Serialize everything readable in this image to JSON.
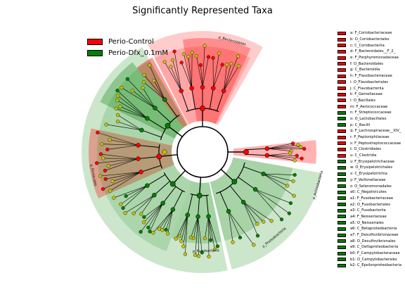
{
  "chart_data": {
    "type": "cladogram",
    "title": "Significantly Represented Taxa",
    "groups": [
      {
        "name": "Perio-Control",
        "color": "#ff0000"
      },
      {
        "name": "Perio-Dfx_0.1mM",
        "color": "#008000"
      }
    ],
    "clade_labels": [
      {
        "text": "p_Bacteroidetes",
        "group": "Perio-Control"
      },
      {
        "text": "p_Actinobacteria",
        "group": "Perio-Control"
      },
      {
        "text": "p_Firmicutes",
        "group": "Perio-Control"
      },
      {
        "text": "p_Proteobacteria",
        "group": "Perio-Dfx_0.1mM"
      },
      {
        "text": "p_Fusobacteria",
        "group": "Perio-Dfx_0.1mM"
      }
    ],
    "taxa": [
      {
        "key": "a",
        "label": "a: F_Coriobacteriaceae",
        "group": "Perio-Control"
      },
      {
        "key": "b",
        "label": "b: O_Coriobacteriales",
        "group": "Perio-Control"
      },
      {
        "key": "c",
        "label": "c: C_Coriobacteriia",
        "group": "Perio-Control"
      },
      {
        "key": "d",
        "label": "d: F_Bacteroidales__F_2_",
        "group": "Perio-Control"
      },
      {
        "key": "e",
        "label": "e: F_Porphyromonadaceae",
        "group": "Perio-Control"
      },
      {
        "key": "f",
        "label": "f: O_Bacteroidales",
        "group": "Perio-Control"
      },
      {
        "key": "g",
        "label": "g: C_Bacteroidia",
        "group": "Perio-Control"
      },
      {
        "key": "h",
        "label": "h: F_Flavobacteriaceae",
        "group": "Perio-Control"
      },
      {
        "key": "i",
        "label": "i: O_Flavobacteriales",
        "group": "Perio-Control"
      },
      {
        "key": "j",
        "label": "j: C_Flavobacteriia",
        "group": "Perio-Control"
      },
      {
        "key": "k",
        "label": "k: F_Gemellaceae",
        "group": "Perio-Control"
      },
      {
        "key": "l",
        "label": "l: O_Bacillales",
        "group": "Perio-Control"
      },
      {
        "key": "m",
        "label": "m: F_Aerococcaceae",
        "group": "Perio-Control"
      },
      {
        "key": "n",
        "label": "n: F_Streptococcaceae",
        "group": "Perio-Dfx_0.1mM"
      },
      {
        "key": "o",
        "label": "o: O_Lactobacillales",
        "group": "Perio-Dfx_0.1mM"
      },
      {
        "key": "p",
        "label": "p: C_Bacilli",
        "group": "Perio-Dfx_0.1mM"
      },
      {
        "key": "q",
        "label": "q: F_Lachnospiraceae__XIV_",
        "group": "Perio-Control"
      },
      {
        "key": "r",
        "label": "r: F_Peptoniphilaceae",
        "group": "Perio-Control"
      },
      {
        "key": "s",
        "label": "s: F_Peptostreptococcaceae",
        "group": "Perio-Control"
      },
      {
        "key": "t",
        "label": "t: O_Clostridiales",
        "group": "Perio-Control"
      },
      {
        "key": "u",
        "label": "u: C_Clostridia",
        "group": "Perio-Control"
      },
      {
        "key": "v",
        "label": "v: F_Erysipelotrichaceae",
        "group": "Perio-Dfx_0.1mM"
      },
      {
        "key": "w",
        "label": "w: O_Erysipelotrichales",
        "group": "Perio-Dfx_0.1mM"
      },
      {
        "key": "x",
        "label": "x: C_Erysipelotrichia",
        "group": "Perio-Dfx_0.1mM"
      },
      {
        "key": "y",
        "label": "y: F_Veillonellaceae",
        "group": "Perio-Dfx_0.1mM"
      },
      {
        "key": "z",
        "label": "z: O_Selenomonadales",
        "group": "Perio-Dfx_0.1mM"
      },
      {
        "key": "a0",
        "label": "a0: C_Negativicutes",
        "group": "Perio-Dfx_0.1mM"
      },
      {
        "key": "a1",
        "label": "a1: F_Fusobacteriaceae",
        "group": "Perio-Dfx_0.1mM"
      },
      {
        "key": "a2",
        "label": "a2: O_Fusobacteriales",
        "group": "Perio-Dfx_0.1mM"
      },
      {
        "key": "a3",
        "label": "a3: C_Fusobacteriia",
        "group": "Perio-Dfx_0.1mM"
      },
      {
        "key": "a4",
        "label": "a4: F_Neisseriaceae",
        "group": "Perio-Dfx_0.1mM"
      },
      {
        "key": "a5",
        "label": "a5: O_Neisseriales",
        "group": "Perio-Dfx_0.1mM"
      },
      {
        "key": "a6",
        "label": "a6: C_Betaproteobacteria",
        "group": "Perio-Dfx_0.1mM"
      },
      {
        "key": "a7",
        "label": "a7: F_Desulfovibrionaceae",
        "group": "Perio-Dfx_0.1mM"
      },
      {
        "key": "a8",
        "label": "a8: O_Desulfovibrionales",
        "group": "Perio-Dfx_0.1mM"
      },
      {
        "key": "a9",
        "label": "a9: C_Deltaproteobacteria",
        "group": "Perio-Dfx_0.1mM"
      },
      {
        "key": "b0",
        "label": "b0: F_Campylobacteraceae",
        "group": "Perio-Dfx_0.1mM"
      },
      {
        "key": "b1",
        "label": "b1: O_Campylobacterales",
        "group": "Perio-Dfx_0.1mM"
      },
      {
        "key": "b2",
        "label": "b2: C_Epsilonproteobacteria",
        "group": "Perio-Dfx_0.1mM"
      }
    ]
  }
}
